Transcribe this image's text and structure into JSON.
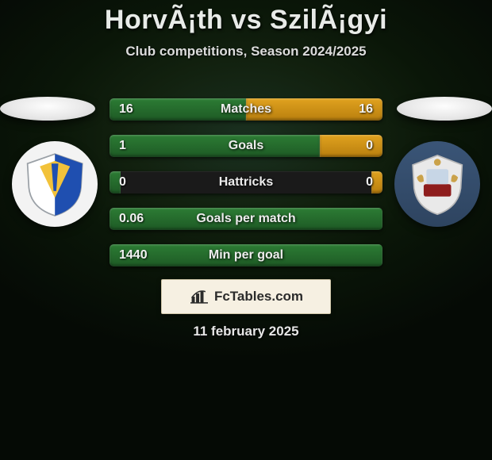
{
  "title": "HorvÃ¡th vs SzilÃ¡gyi",
  "subtitle": "Club competitions, Season 2024/2025",
  "date": "11 february 2025",
  "brand": "FcTables.com",
  "colors": {
    "left_bar": "#2c7c34",
    "left_bar_dark": "#1e5a25",
    "right_bar": "#e0a21f",
    "right_bar_dark": "#b97f0e",
    "track": "#1a1a1a",
    "brand_box_bg": "#f6f0e2",
    "brand_box_border": "#cfc6a8",
    "brand_text": "#2b2b2b"
  },
  "stats": [
    {
      "label": "Matches",
      "left_text": "16",
      "right_text": "16",
      "left_pct": 50,
      "right_pct": 50
    },
    {
      "label": "Goals",
      "left_text": "1",
      "right_text": "0",
      "left_pct": 77,
      "right_pct": 23
    },
    {
      "label": "Hattricks",
      "left_text": "0",
      "right_text": "0",
      "left_pct": 4,
      "right_pct": 4
    },
    {
      "label": "Goals per match",
      "left_text": "0.06",
      "right_text": "",
      "left_pct": 100,
      "right_pct": 0
    },
    {
      "label": "Min per goal",
      "left_text": "1440",
      "right_text": "",
      "left_pct": 100,
      "right_pct": 0
    }
  ],
  "logos": {
    "left_alt": "team-left-crest",
    "right_alt": "team-right-crest"
  }
}
